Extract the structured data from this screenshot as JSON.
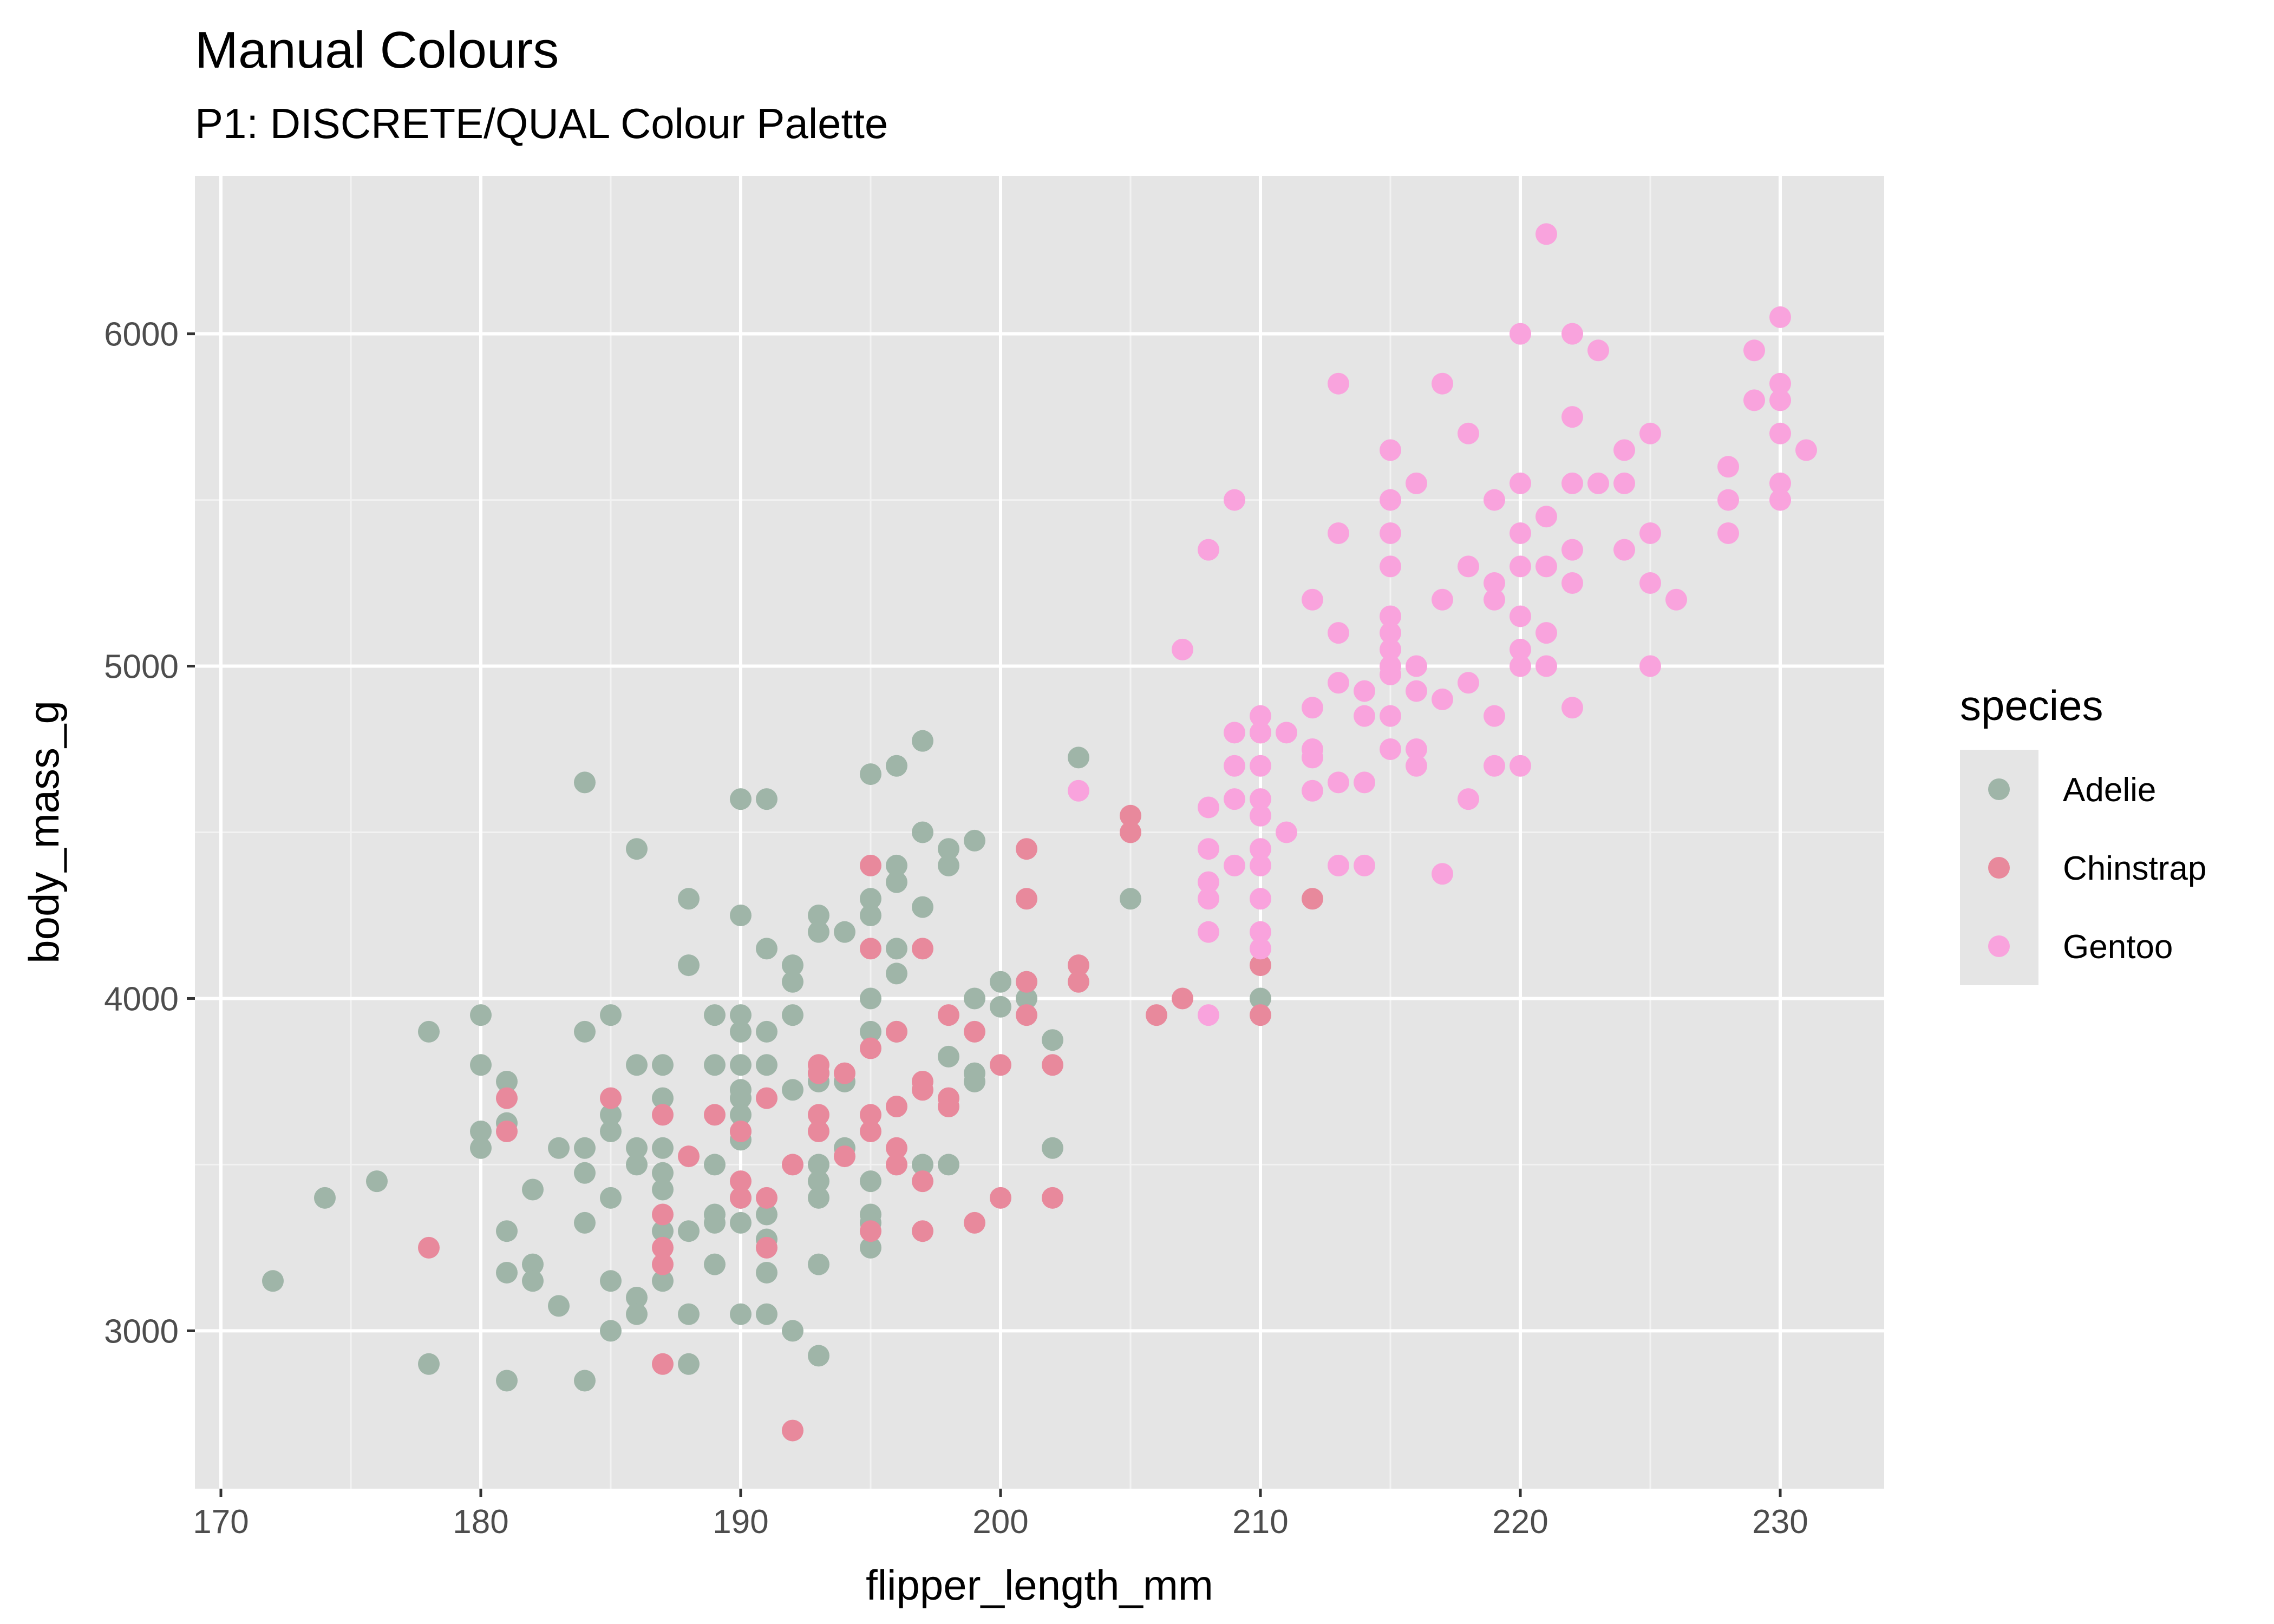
{
  "chart_data": {
    "type": "scatter",
    "title": "Manual Colours",
    "subtitle": "P1: DISCRETE/QUAL Colour Palette",
    "xlabel": "flipper_length_mm",
    "ylabel": "body_mass_g",
    "xlim": [
      169,
      234
    ],
    "ylim": [
      2525,
      6475
    ],
    "x_ticks": [
      170,
      180,
      190,
      200,
      210,
      220,
      230
    ],
    "y_ticks": [
      3000,
      4000,
      5000,
      6000
    ],
    "grid": true,
    "background": "#e5e5e5",
    "legend": {
      "title": "species",
      "position": "right",
      "entries": [
        "Adelie",
        "Chinstrap",
        "Gentoo"
      ]
    },
    "series": [
      {
        "name": "Adelie",
        "color": "#9fb5a8",
        "points": [
          [
            172,
            3150
          ],
          [
            174,
            3400
          ],
          [
            176,
            3450
          ],
          [
            178,
            3900
          ],
          [
            178,
            2900
          ],
          [
            180,
            3950
          ],
          [
            180,
            3800
          ],
          [
            180,
            3600
          ],
          [
            180,
            3550
          ],
          [
            181,
            3750
          ],
          [
            181,
            3625
          ],
          [
            181,
            3300
          ],
          [
            181,
            3175
          ],
          [
            181,
            2850
          ],
          [
            182,
            3200
          ],
          [
            182,
            3150
          ],
          [
            182,
            3425
          ],
          [
            183,
            3550
          ],
          [
            183,
            3075
          ],
          [
            184,
            4650
          ],
          [
            184,
            3900
          ],
          [
            184,
            3550
          ],
          [
            184,
            3475
          ],
          [
            184,
            3325
          ],
          [
            184,
            2850
          ],
          [
            185,
            3950
          ],
          [
            185,
            3650
          ],
          [
            185,
            3600
          ],
          [
            185,
            3400
          ],
          [
            185,
            3150
          ],
          [
            185,
            3000
          ],
          [
            186,
            4450
          ],
          [
            186,
            3800
          ],
          [
            186,
            3550
          ],
          [
            186,
            3500
          ],
          [
            186,
            3100
          ],
          [
            186,
            3050
          ],
          [
            187,
            3800
          ],
          [
            187,
            3700
          ],
          [
            187,
            3550
          ],
          [
            187,
            3475
          ],
          [
            187,
            3425
          ],
          [
            187,
            3300
          ],
          [
            187,
            3150
          ],
          [
            188,
            4300
          ],
          [
            188,
            4100
          ],
          [
            188,
            3300
          ],
          [
            188,
            3050
          ],
          [
            188,
            2900
          ],
          [
            189,
            3950
          ],
          [
            189,
            3800
          ],
          [
            189,
            3500
          ],
          [
            189,
            3350
          ],
          [
            189,
            3325
          ],
          [
            189,
            3200
          ],
          [
            190,
            4600
          ],
          [
            190,
            4250
          ],
          [
            190,
            3950
          ],
          [
            190,
            3900
          ],
          [
            190,
            3800
          ],
          [
            190,
            3725
          ],
          [
            190,
            3700
          ],
          [
            190,
            3650
          ],
          [
            190,
            3600
          ],
          [
            190,
            3575
          ],
          [
            190,
            3400
          ],
          [
            190,
            3325
          ],
          [
            190,
            3050
          ],
          [
            191,
            4600
          ],
          [
            191,
            4150
          ],
          [
            191,
            3900
          ],
          [
            191,
            3800
          ],
          [
            191,
            3350
          ],
          [
            191,
            3275
          ],
          [
            191,
            3175
          ],
          [
            191,
            3050
          ],
          [
            192,
            4100
          ],
          [
            192,
            4050
          ],
          [
            192,
            3950
          ],
          [
            192,
            3725
          ],
          [
            192,
            3000
          ],
          [
            193,
            4250
          ],
          [
            193,
            4200
          ],
          [
            193,
            3775
          ],
          [
            193,
            3750
          ],
          [
            193,
            3500
          ],
          [
            193,
            3450
          ],
          [
            193,
            3400
          ],
          [
            193,
            3200
          ],
          [
            193,
            2925
          ],
          [
            194,
            4200
          ],
          [
            194,
            3750
          ],
          [
            194,
            3550
          ],
          [
            195,
            4675
          ],
          [
            195,
            4300
          ],
          [
            195,
            4250
          ],
          [
            195,
            4000
          ],
          [
            195,
            3900
          ],
          [
            195,
            3450
          ],
          [
            195,
            3350
          ],
          [
            195,
            3325
          ],
          [
            195,
            3250
          ],
          [
            196,
            4700
          ],
          [
            196,
            4400
          ],
          [
            196,
            4350
          ],
          [
            196,
            4150
          ],
          [
            196,
            4075
          ],
          [
            196,
            3900
          ],
          [
            197,
            4775
          ],
          [
            197,
            4500
          ],
          [
            197,
            4275
          ],
          [
            197,
            3500
          ],
          [
            198,
            4450
          ],
          [
            198,
            4400
          ],
          [
            198,
            3825
          ],
          [
            198,
            3500
          ],
          [
            199,
            4475
          ],
          [
            199,
            4000
          ],
          [
            199,
            3775
          ],
          [
            199,
            3750
          ],
          [
            200,
            4050
          ],
          [
            200,
            3975
          ],
          [
            201,
            4050
          ],
          [
            201,
            4000
          ],
          [
            202,
            3875
          ],
          [
            202,
            3550
          ],
          [
            203,
            4725
          ],
          [
            205,
            4300
          ],
          [
            210,
            4000
          ]
        ]
      },
      {
        "name": "Chinstrap",
        "color": "#e8899c",
        "points": [
          [
            178,
            3250
          ],
          [
            181,
            3700
          ],
          [
            181,
            3600
          ],
          [
            185,
            3700
          ],
          [
            187,
            3650
          ],
          [
            187,
            3350
          ],
          [
            187,
            3250
          ],
          [
            187,
            3200
          ],
          [
            187,
            2900
          ],
          [
            188,
            3525
          ],
          [
            189,
            3650
          ],
          [
            190,
            3600
          ],
          [
            190,
            3450
          ],
          [
            190,
            3400
          ],
          [
            191,
            3700
          ],
          [
            191,
            3400
          ],
          [
            191,
            3250
          ],
          [
            192,
            3500
          ],
          [
            192,
            2700
          ],
          [
            193,
            3800
          ],
          [
            193,
            3775
          ],
          [
            193,
            3650
          ],
          [
            193,
            3600
          ],
          [
            194,
            3775
          ],
          [
            194,
            3525
          ],
          [
            195,
            4400
          ],
          [
            195,
            4150
          ],
          [
            195,
            3850
          ],
          [
            195,
            3650
          ],
          [
            195,
            3600
          ],
          [
            195,
            3300
          ],
          [
            196,
            3900
          ],
          [
            196,
            3675
          ],
          [
            196,
            3550
          ],
          [
            196,
            3500
          ],
          [
            197,
            4150
          ],
          [
            197,
            3750
          ],
          [
            197,
            3725
          ],
          [
            197,
            3450
          ],
          [
            197,
            3300
          ],
          [
            198,
            3950
          ],
          [
            198,
            3700
          ],
          [
            198,
            3675
          ],
          [
            199,
            3900
          ],
          [
            199,
            3325
          ],
          [
            200,
            3800
          ],
          [
            200,
            3400
          ],
          [
            201,
            4450
          ],
          [
            201,
            4300
          ],
          [
            201,
            4050
          ],
          [
            201,
            3950
          ],
          [
            202,
            3800
          ],
          [
            202,
            3400
          ],
          [
            203,
            4100
          ],
          [
            203,
            4050
          ],
          [
            205,
            4550
          ],
          [
            205,
            4500
          ],
          [
            206,
            3950
          ],
          [
            207,
            4000
          ],
          [
            210,
            4800
          ],
          [
            210,
            4100
          ],
          [
            210,
            3950
          ],
          [
            212,
            4300
          ]
        ]
      },
      {
        "name": "Gentoo",
        "color": "#f9a3dd",
        "points": [
          [
            203,
            4625
          ],
          [
            207,
            5050
          ],
          [
            208,
            5350
          ],
          [
            208,
            4575
          ],
          [
            208,
            4450
          ],
          [
            208,
            4350
          ],
          [
            208,
            4300
          ],
          [
            208,
            4200
          ],
          [
            208,
            3950
          ],
          [
            209,
            5500
          ],
          [
            209,
            4800
          ],
          [
            209,
            4700
          ],
          [
            209,
            4600
          ],
          [
            209,
            4400
          ],
          [
            210,
            4850
          ],
          [
            210,
            4800
          ],
          [
            210,
            4700
          ],
          [
            210,
            4600
          ],
          [
            210,
            4550
          ],
          [
            210,
            4450
          ],
          [
            210,
            4400
          ],
          [
            210,
            4300
          ],
          [
            210,
            4200
          ],
          [
            210,
            4150
          ],
          [
            211,
            4800
          ],
          [
            211,
            4500
          ],
          [
            212,
            5200
          ],
          [
            212,
            4875
          ],
          [
            212,
            4750
          ],
          [
            212,
            4725
          ],
          [
            212,
            4625
          ],
          [
            213,
            5850
          ],
          [
            213,
            5400
          ],
          [
            213,
            5100
          ],
          [
            213,
            4950
          ],
          [
            213,
            4650
          ],
          [
            213,
            4400
          ],
          [
            214,
            4925
          ],
          [
            214,
            4850
          ],
          [
            214,
            4650
          ],
          [
            214,
            4400
          ],
          [
            215,
            5650
          ],
          [
            215,
            5500
          ],
          [
            215,
            5400
          ],
          [
            215,
            5300
          ],
          [
            215,
            5150
          ],
          [
            215,
            5100
          ],
          [
            215,
            5050
          ],
          [
            215,
            5000
          ],
          [
            215,
            4975
          ],
          [
            215,
            4850
          ],
          [
            215,
            4750
          ],
          [
            216,
            5550
          ],
          [
            216,
            5000
          ],
          [
            216,
            4925
          ],
          [
            216,
            4750
          ],
          [
            216,
            4700
          ],
          [
            217,
            5850
          ],
          [
            217,
            5200
          ],
          [
            217,
            4900
          ],
          [
            217,
            4375
          ],
          [
            218,
            5700
          ],
          [
            218,
            5300
          ],
          [
            218,
            4950
          ],
          [
            218,
            4600
          ],
          [
            219,
            5500
          ],
          [
            219,
            5250
          ],
          [
            219,
            5200
          ],
          [
            219,
            4850
          ],
          [
            219,
            4700
          ],
          [
            220,
            6000
          ],
          [
            220,
            5550
          ],
          [
            220,
            5400
          ],
          [
            220,
            5300
          ],
          [
            220,
            5150
          ],
          [
            220,
            5050
          ],
          [
            220,
            5000
          ],
          [
            220,
            4700
          ],
          [
            221,
            6300
          ],
          [
            221,
            5450
          ],
          [
            221,
            5300
          ],
          [
            221,
            5100
          ],
          [
            221,
            5000
          ],
          [
            222,
            6000
          ],
          [
            222,
            5750
          ],
          [
            222,
            5550
          ],
          [
            222,
            5350
          ],
          [
            222,
            5250
          ],
          [
            222,
            4875
          ],
          [
            223,
            5950
          ],
          [
            223,
            5550
          ],
          [
            224,
            5650
          ],
          [
            224,
            5550
          ],
          [
            224,
            5350
          ],
          [
            225,
            5700
          ],
          [
            225,
            5400
          ],
          [
            225,
            5250
          ],
          [
            225,
            5000
          ],
          [
            226,
            5200
          ],
          [
            228,
            5600
          ],
          [
            228,
            5500
          ],
          [
            228,
            5400
          ],
          [
            229,
            5950
          ],
          [
            229,
            5800
          ],
          [
            230,
            6050
          ],
          [
            230,
            5850
          ],
          [
            230,
            5800
          ],
          [
            230,
            5700
          ],
          [
            230,
            5550
          ],
          [
            230,
            5500
          ],
          [
            231,
            5650
          ]
        ]
      }
    ]
  }
}
